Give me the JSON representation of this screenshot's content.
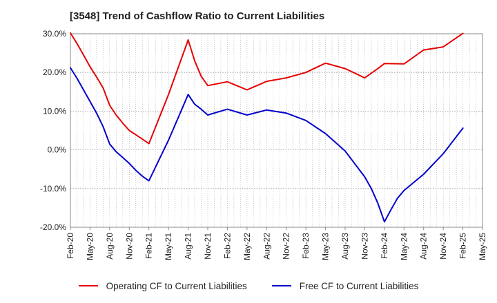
{
  "chart_data": {
    "type": "line",
    "title": "[3548]  Trend of Cashflow Ratio to Current Liabilities",
    "xlabel": "",
    "ylabel": "",
    "ylim": [
      -20,
      30
    ],
    "y_ticks": [
      30,
      20,
      10,
      0,
      -10,
      -20
    ],
    "y_tick_labels": [
      "30.0%",
      "20.0%",
      "10.0%",
      "0.0%",
      "-10.0%",
      "-20.0%"
    ],
    "x_range": [
      "Feb-20",
      "May-25"
    ],
    "x_tick_labels": [
      "Feb-20",
      "May-20",
      "Aug-20",
      "Nov-20",
      "Feb-21",
      "May-21",
      "Aug-21",
      "Nov-21",
      "Feb-22",
      "May-22",
      "Aug-22",
      "Nov-22",
      "Feb-23",
      "May-23",
      "Aug-23",
      "Nov-23",
      "Feb-24",
      "May-24",
      "Aug-24",
      "Nov-24",
      "Feb-25",
      "May-25"
    ],
    "grid": true,
    "legend_position": "bottom-center",
    "series": [
      {
        "name": "Operating CF to Current Liabilities",
        "color": "#e60000",
        "x": [
          "Feb-20",
          "Mar-20",
          "Apr-20",
          "May-20",
          "Jun-20",
          "Jul-20",
          "Aug-20",
          "Sep-20",
          "Oct-20",
          "Nov-20",
          "Dec-20",
          "Jan-21",
          "Feb-21",
          "May-21",
          "Aug-21",
          "Sep-21",
          "Oct-21",
          "Nov-21",
          "Feb-22",
          "May-22",
          "Aug-22",
          "Nov-22",
          "Feb-23",
          "May-23",
          "Aug-23",
          "Nov-23",
          "Dec-23",
          "Jan-24",
          "Feb-24",
          "May-24",
          "Aug-24",
          "Nov-24",
          "Feb-25"
        ],
        "values": [
          30.2,
          27.5,
          24.5,
          21.5,
          18.8,
          16.0,
          11.5,
          9.0,
          6.9,
          5.0,
          3.9,
          2.8,
          1.6,
          14.3,
          28.4,
          23.0,
          19.0,
          16.6,
          17.6,
          15.5,
          17.7,
          18.6,
          20.0,
          22.4,
          21.0,
          18.6,
          19.8,
          21.0,
          22.3,
          22.2,
          25.8,
          26.6,
          30.1
        ]
      },
      {
        "name": "Free CF to Current Liabilities",
        "color": "#0000cc",
        "x": [
          "Feb-20",
          "Mar-20",
          "Apr-20",
          "May-20",
          "Jun-20",
          "Jul-20",
          "Aug-20",
          "Sep-20",
          "Oct-20",
          "Nov-20",
          "Dec-20",
          "Jan-21",
          "Feb-21",
          "May-21",
          "Aug-21",
          "Sep-21",
          "Oct-21",
          "Nov-21",
          "Feb-22",
          "May-22",
          "Aug-22",
          "Nov-22",
          "Feb-23",
          "May-23",
          "Aug-23",
          "Nov-23",
          "Dec-23",
          "Jan-24",
          "Feb-24",
          "Mar-24",
          "Apr-24",
          "May-24",
          "Aug-24",
          "Nov-24",
          "Feb-25"
        ],
        "values": [
          21.2,
          18.5,
          15.5,
          12.5,
          9.5,
          6.0,
          1.5,
          -0.5,
          -2.0,
          -3.5,
          -5.3,
          -6.8,
          -8.0,
          2.5,
          14.3,
          11.8,
          10.5,
          9.0,
          10.5,
          9.0,
          10.3,
          9.5,
          7.6,
          4.2,
          -0.3,
          -7.0,
          -10.0,
          -13.8,
          -18.6,
          -15.5,
          -12.5,
          -10.5,
          -6.3,
          -1.0,
          5.6
        ]
      }
    ]
  }
}
